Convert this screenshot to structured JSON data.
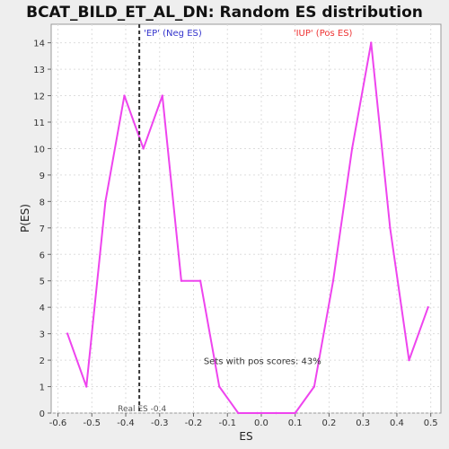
{
  "chart_data": {
    "type": "line",
    "title": "BCAT_BILD_ET_AL_DN: Random ES distribution",
    "xlabel": "ES",
    "ylabel": "P(ES)",
    "xlim": [
      -0.62,
      0.53
    ],
    "ylim": [
      0,
      14.7
    ],
    "x_ticks": [
      -0.6,
      -0.5,
      -0.4,
      -0.3,
      -0.2,
      -0.1,
      0.0,
      0.1,
      0.2,
      0.3,
      0.4,
      0.5
    ],
    "x_tick_labels": [
      "-0.6",
      "-0.5",
      "-0.4",
      "-0.3",
      "-0.2",
      "-0.1",
      "0.0",
      "0.1",
      "0.2",
      "0.3",
      "0.4",
      "0.5"
    ],
    "y_ticks": [
      0,
      1,
      2,
      3,
      4,
      5,
      6,
      7,
      8,
      9,
      10,
      11,
      12,
      13,
      14
    ],
    "y_tick_labels": [
      "0",
      "1",
      "2",
      "3",
      "4",
      "5",
      "6",
      "7",
      "8",
      "9",
      "10",
      "11",
      "12",
      "13",
      "14"
    ],
    "grid": true,
    "series": [
      {
        "color": "#ee44ee",
        "x": [
          -0.572,
          -0.516,
          -0.46,
          -0.404,
          -0.348,
          -0.292,
          -0.236,
          -0.18,
          -0.124,
          -0.068,
          -0.012,
          0.044,
          0.1,
          0.156,
          0.212,
          0.268,
          0.324,
          0.38,
          0.436,
          0.492
        ],
        "y": [
          3,
          1,
          8,
          12,
          10,
          12,
          5,
          5,
          1,
          0,
          0,
          0,
          0,
          1,
          5,
          10,
          14,
          7,
          2,
          4
        ]
      }
    ],
    "real_es": -0.36,
    "annotations": {
      "neg_label": "'EP' (Neg ES)",
      "pos_label": "'IUP' (Pos ES)",
      "real_es_label": "Real ES -0.4",
      "pos_scores_label": "Sets with pos scores: 43%"
    },
    "colors": {
      "line": "#ee44ee",
      "neg_label": "#3333cc",
      "pos_label": "#ee3333",
      "grid": "#dddddd",
      "real_es_line": "#333333"
    }
  }
}
